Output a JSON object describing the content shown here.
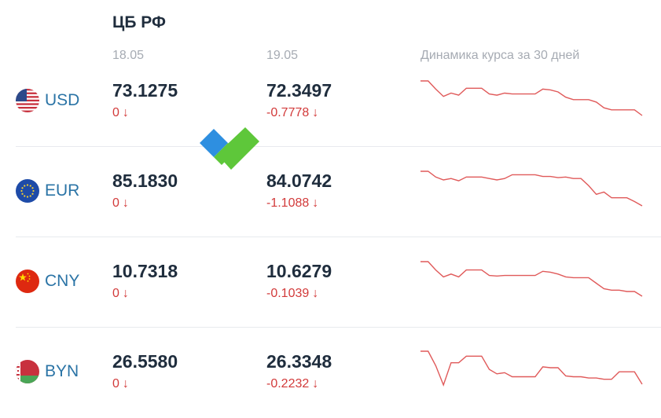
{
  "header": {
    "title": "ЦБ РФ",
    "date_prev": "18.05",
    "date_curr": "19.05",
    "dynamics_label": "Динамика курса за 30 дней"
  },
  "arrow_glyph": "↓",
  "rows": [
    {
      "code": "USD",
      "flag_icon": "us-flag-icon",
      "prev": {
        "value": "73.1275",
        "change": "0"
      },
      "curr": {
        "value": "72.3497",
        "change": "-0.7778"
      },
      "spark": [
        73.6,
        73.6,
        73.4,
        73.22,
        73.3,
        73.25,
        73.42,
        73.42,
        73.42,
        73.28,
        73.25,
        73.3,
        73.28,
        73.28,
        73.28,
        73.28,
        73.4,
        73.38,
        73.33,
        73.2,
        73.14,
        73.14,
        73.14,
        73.08,
        72.94,
        72.89,
        72.89,
        72.89,
        72.89,
        72.75
      ]
    },
    {
      "code": "EUR",
      "flag_icon": "eu-flag-icon",
      "prev": {
        "value": "85.1830",
        "change": "0"
      },
      "curr": {
        "value": "84.0742",
        "change": "-1.1088"
      },
      "spark": [
        85.8,
        85.8,
        85.6,
        85.5,
        85.55,
        85.47,
        85.6,
        85.6,
        85.6,
        85.55,
        85.5,
        85.55,
        85.68,
        85.68,
        85.68,
        85.68,
        85.62,
        85.62,
        85.58,
        85.6,
        85.55,
        85.55,
        85.3,
        85.0,
        85.08,
        84.88,
        84.88,
        84.88,
        84.75,
        84.6
      ]
    },
    {
      "code": "CNY",
      "flag_icon": "cn-flag-icon",
      "prev": {
        "value": "10.7318",
        "change": "0"
      },
      "curr": {
        "value": "10.6279",
        "change": "-0.1039"
      },
      "spark": [
        10.82,
        10.82,
        10.79,
        10.765,
        10.775,
        10.765,
        10.79,
        10.79,
        10.79,
        10.77,
        10.768,
        10.77,
        10.77,
        10.77,
        10.77,
        10.77,
        10.785,
        10.782,
        10.775,
        10.765,
        10.762,
        10.762,
        10.762,
        10.742,
        10.722,
        10.717,
        10.717,
        10.712,
        10.712,
        10.695
      ]
    },
    {
      "code": "BYN",
      "flag_icon": "by-flag-icon",
      "prev": {
        "value": "26.5580",
        "change": "0"
      },
      "curr": {
        "value": "26.3348",
        "change": "-0.2232"
      },
      "spark": [
        27.1,
        27.1,
        26.75,
        26.28,
        26.82,
        26.82,
        26.98,
        26.98,
        26.98,
        26.66,
        26.55,
        26.58,
        26.48,
        26.48,
        26.48,
        26.48,
        26.72,
        26.7,
        26.7,
        26.5,
        26.48,
        26.48,
        26.45,
        26.45,
        26.42,
        26.42,
        26.6,
        26.6,
        26.6,
        26.3
      ]
    }
  ],
  "colors": {
    "spark_line": "#e05a5a",
    "negative": "#d23a3a",
    "code": "#2b74a6",
    "logo_blue": "#2e8fe0",
    "logo_green": "#5ec73a"
  }
}
